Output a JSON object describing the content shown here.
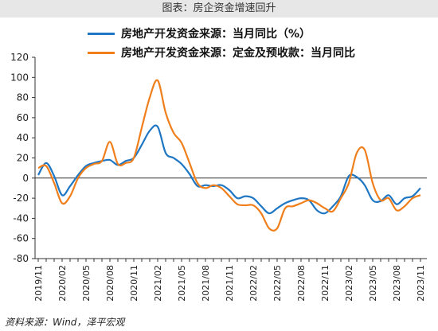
{
  "page_title": "图表：房企资金增速回升",
  "source": "资料来源：Wind，泽平宏观",
  "colors": {
    "blue": "#1f77c4",
    "orange": "#f07f1b",
    "header_bg": "#e7e7e7"
  },
  "chart_data": {
    "type": "line",
    "title": "",
    "xlabel": "",
    "ylabel": "",
    "ylim": [
      -80,
      120
    ],
    "yticks": [
      -80,
      -60,
      -40,
      -20,
      0,
      20,
      40,
      60,
      80,
      100,
      120
    ],
    "grid": false,
    "legend_position": "top",
    "x_tick_labels": [
      "2019/11",
      "2020/02",
      "2020/05",
      "2020/08",
      "2020/11",
      "2021/02",
      "2021/05",
      "2021/08",
      "2021/11",
      "2022/02",
      "2022/05",
      "2022/08",
      "2022/11",
      "2023/02",
      "2023/05",
      "2023/08",
      "2023/11"
    ],
    "x": [
      "2019/11",
      "2019/12",
      "2020/01",
      "2020/02",
      "2020/03",
      "2020/04",
      "2020/05",
      "2020/06",
      "2020/07",
      "2020/08",
      "2020/09",
      "2020/10",
      "2020/11",
      "2020/12",
      "2021/01",
      "2021/02",
      "2021/03",
      "2021/04",
      "2021/05",
      "2021/06",
      "2021/07",
      "2021/08",
      "2021/09",
      "2021/10",
      "2021/11",
      "2021/12",
      "2022/01",
      "2022/02",
      "2022/03",
      "2022/04",
      "2022/05",
      "2022/06",
      "2022/07",
      "2022/08",
      "2022/09",
      "2022/10",
      "2022/11",
      "2022/12",
      "2023/01",
      "2023/02",
      "2023/03",
      "2023/04",
      "2023/05",
      "2023/06",
      "2023/07",
      "2023/08",
      "2023/09",
      "2023/10",
      "2023/11"
    ],
    "series": [
      {
        "name": "房地产开发资金来源：当月同比（%）",
        "color": "#1f77c4",
        "values": [
          3,
          15,
          2,
          -17,
          -8,
          3,
          12,
          15,
          17,
          18,
          13,
          17,
          20,
          33,
          47,
          51,
          25,
          20,
          14,
          4,
          -8,
          -7,
          -8,
          -7,
          -12,
          -20,
          -18,
          -20,
          -28,
          -35,
          -30,
          -25,
          -22,
          -20,
          -22,
          -32,
          -35,
          -28,
          -18,
          2,
          1,
          -7,
          -22,
          -23,
          -17,
          -26,
          -20,
          -18,
          -10
        ]
      },
      {
        "name": "房地产开发资金来源：定金及预收款：当月同比",
        "color": "#f07f1b",
        "values": [
          10,
          12,
          -5,
          -25,
          -18,
          0,
          10,
          14,
          17,
          36,
          14,
          15,
          20,
          50,
          80,
          97,
          65,
          45,
          35,
          15,
          -5,
          -10,
          -7,
          -10,
          -18,
          -26,
          -27,
          -27,
          -35,
          -50,
          -50,
          -30,
          -28,
          -25,
          -22,
          -25,
          -30,
          -33,
          -20,
          -5,
          25,
          28,
          -5,
          -22,
          -20,
          -32,
          -28,
          -20,
          -17
        ]
      }
    ]
  }
}
